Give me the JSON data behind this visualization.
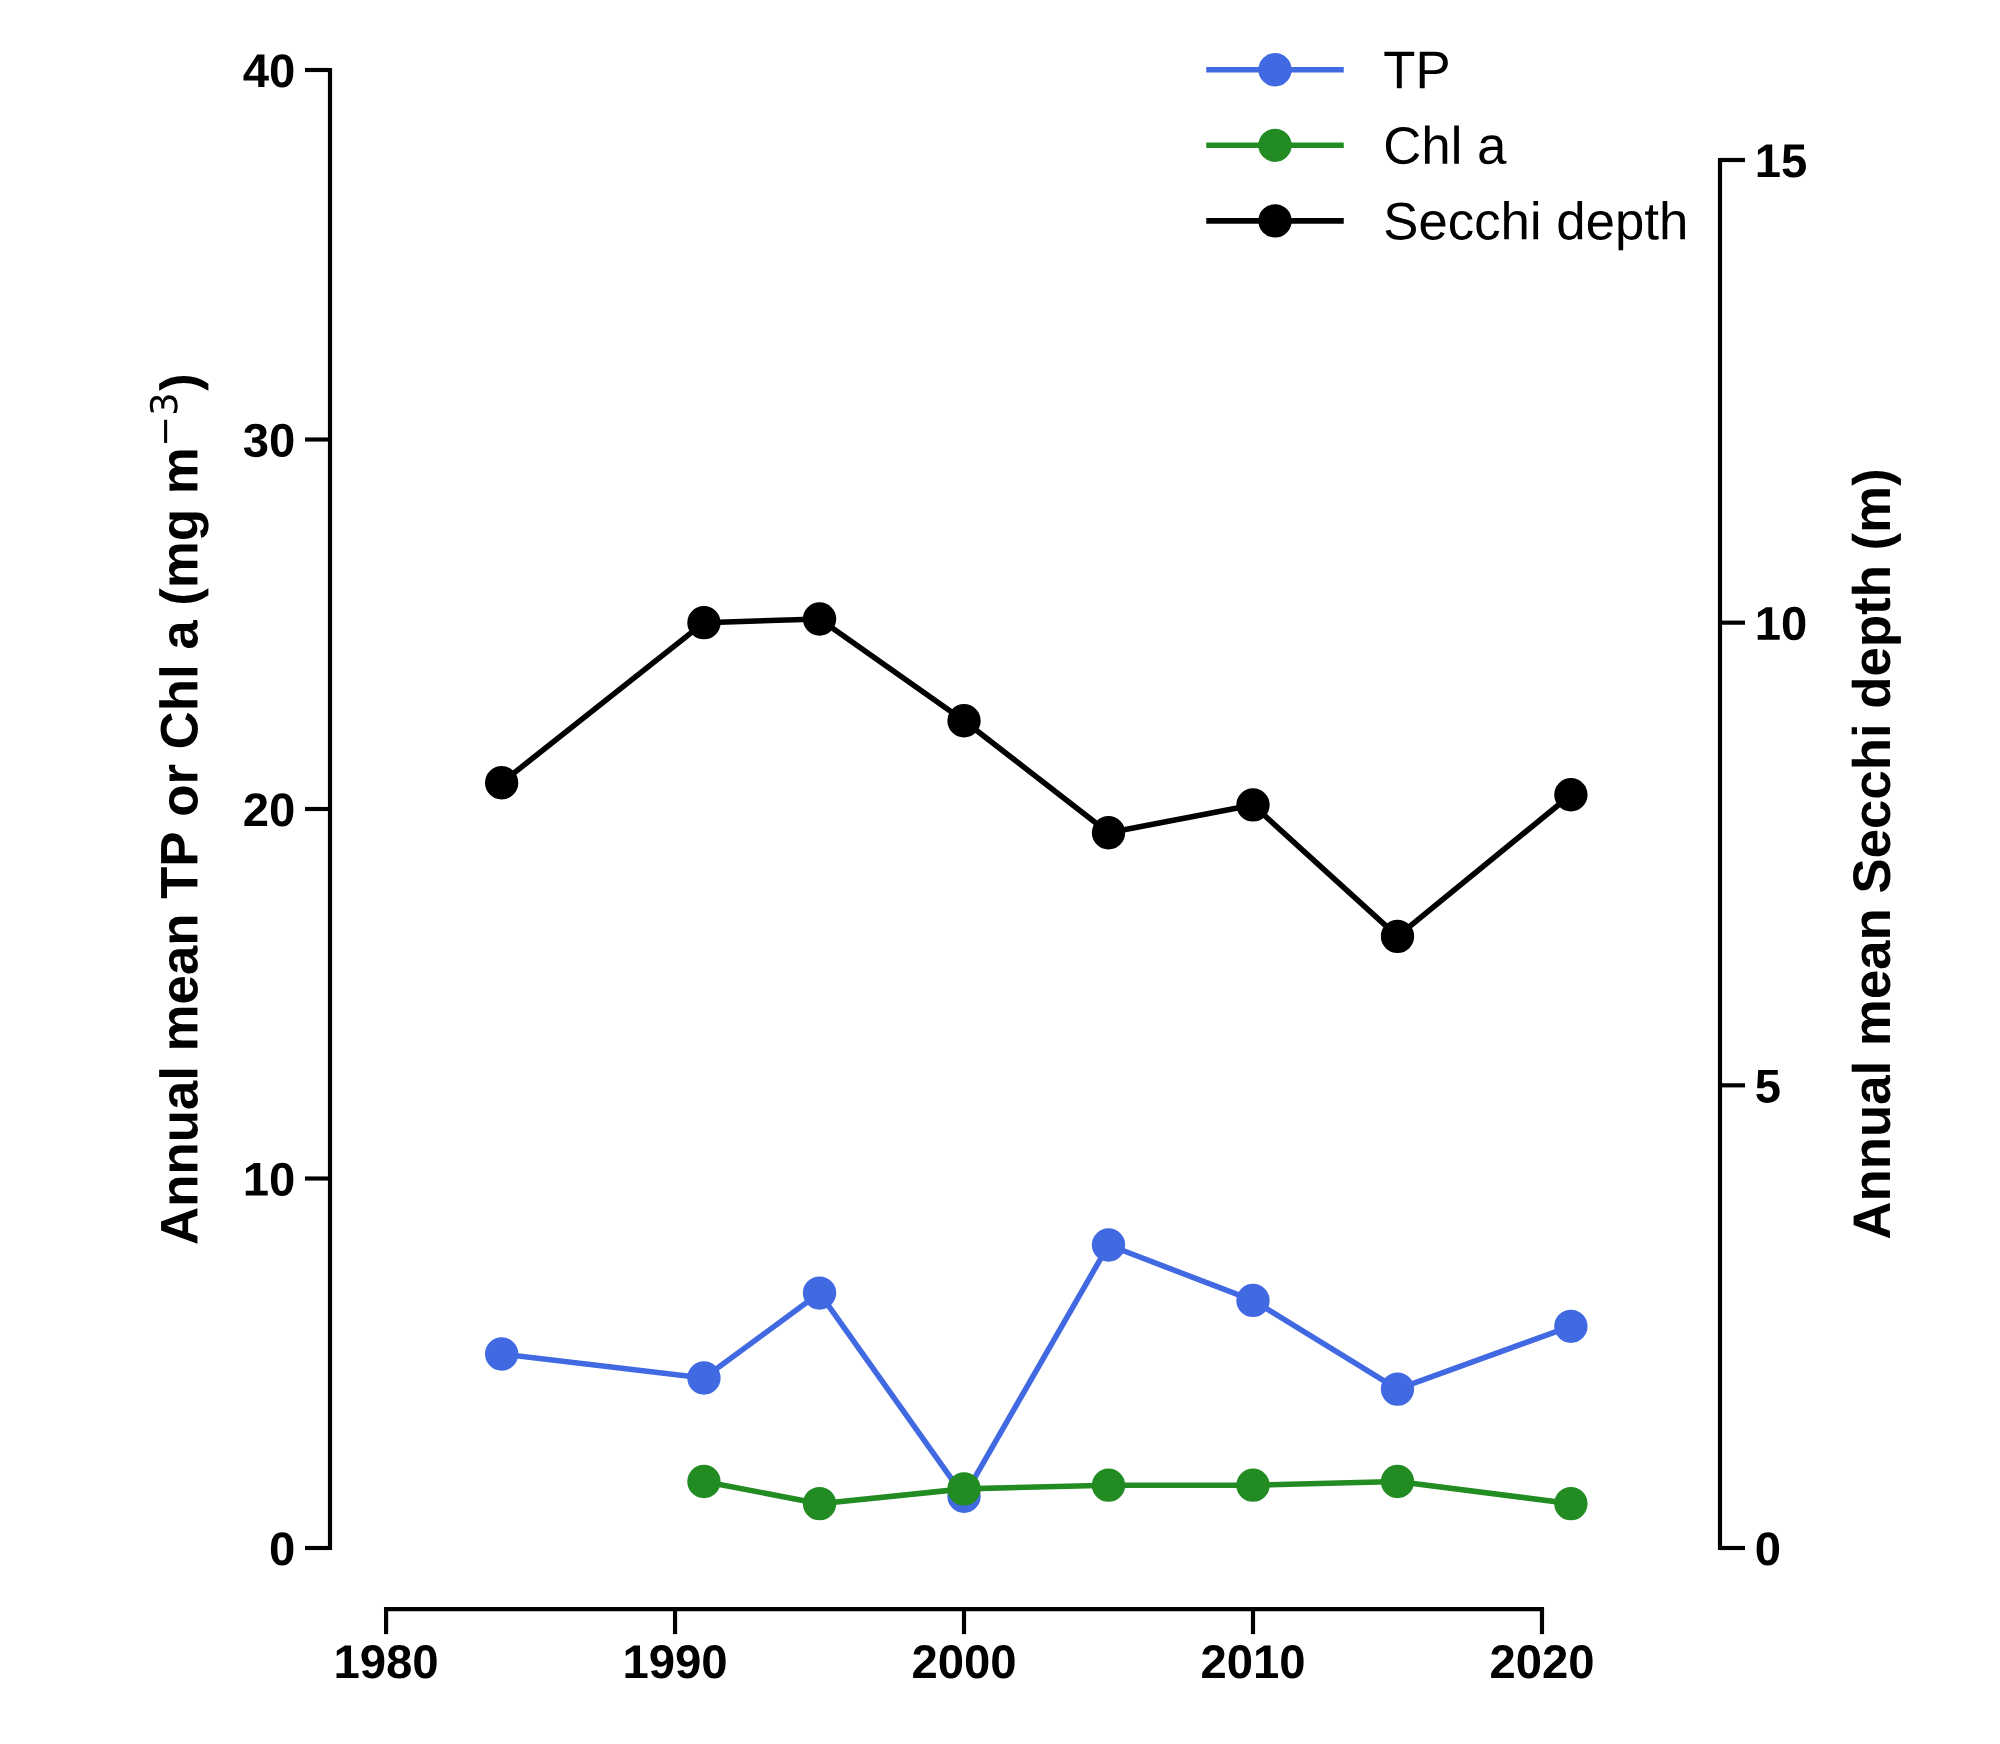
{
  "chart_data": {
    "type": "line",
    "ylabel": "Annual mean TP or Chl a (mg m$^{−3}$)",
    "y2label": "Annual mean Secchi depth (m)",
    "x": [
      1984,
      1991,
      1995,
      2000,
      2005,
      2010,
      2015,
      2021
    ],
    "series": [
      {
        "name": "TP",
        "color": "#4169e1",
        "values": [
          5.25,
          4.6,
          6.9,
          1.4,
          8.2,
          6.7,
          4.3,
          6.0
        ]
      },
      {
        "name": "Chl a",
        "color": "#228b22",
        "values": [
          null,
          1.8,
          1.2,
          1.6,
          1.7,
          1.7,
          1.8,
          1.2
        ]
      },
      {
        "name": "Secchi depth",
        "color": "#000000",
        "axis": "y2",
        "values": [
          8.27,
          10.0,
          10.04,
          8.94,
          7.73,
          8.03,
          6.61,
          8.14
        ]
      }
    ],
    "xlim": [
      1978.06,
      2026.16
    ],
    "xticks": [
      1980,
      1990,
      2000,
      2010,
      2020
    ],
    "ylim": [
      0,
      40
    ],
    "yticks": [
      0,
      10,
      20,
      30,
      40
    ],
    "y2lim": [
      0,
      15
    ],
    "y2ticks": [
      0,
      5,
      10,
      15
    ],
    "marker": "circle",
    "line_style": "solid",
    "grid": false,
    "legend": "top right"
  }
}
